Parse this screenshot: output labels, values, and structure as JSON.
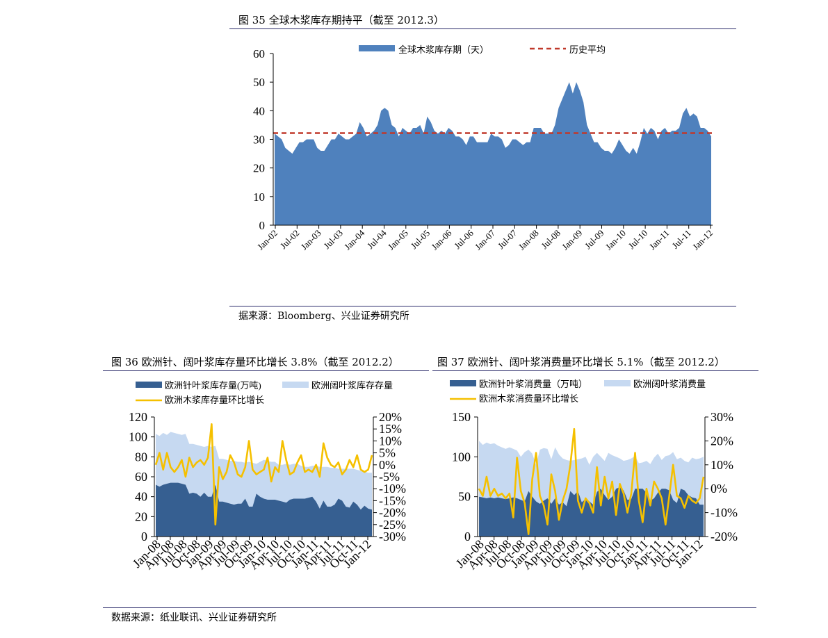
{
  "top": {
    "title": "图 35 全球木浆库存期持平（截至 2012.3）",
    "source": "据来源：Bloomberg、兴业证券研究所"
  },
  "bottom_left": {
    "title": "图 36 欧洲针、阔叶浆库存量环比增长 3.8%（截至 2012.2）"
  },
  "bottom_right": {
    "title": "图 37 欧洲针、阔叶浆消费量环比增长 5.1%（截至 2012.2）"
  },
  "bottom_source": "数据来源：纸业联讯、兴业证券研究所",
  "colors": {
    "area": "#4f81bd",
    "avg_line": "#c0392b",
    "dark_area": "#365f91",
    "light_area": "#c6d9f1",
    "growth_line": "#f5c000",
    "rule": "#2a2a6a"
  },
  "chart_data": [
    {
      "type": "area",
      "series": [
        {
          "name": "全球木浆库存期（天）",
          "values": [
            32,
            31,
            30,
            27,
            26,
            25,
            27,
            29,
            29,
            30,
            30,
            30,
            27,
            26,
            26,
            28,
            30,
            30,
            32,
            31,
            30,
            30,
            31,
            32,
            36,
            34,
            31,
            32,
            33,
            35,
            40,
            41,
            40,
            35,
            34,
            31,
            34,
            33,
            32,
            34,
            34,
            35,
            32,
            38,
            36,
            33,
            32,
            33,
            32,
            34,
            33,
            31,
            31,
            30,
            28,
            31,
            31,
            29,
            29,
            29,
            29,
            32,
            31,
            31,
            30,
            27,
            28,
            30,
            30,
            29,
            28,
            29,
            29,
            34,
            34,
            34,
            32,
            32,
            32,
            35,
            41,
            44,
            47,
            50,
            46,
            50,
            47,
            43,
            35,
            32,
            29,
            29,
            27,
            26,
            26,
            25,
            27,
            30,
            28,
            26,
            25,
            27,
            25,
            29,
            34,
            32,
            34,
            33,
            30,
            33,
            34,
            32,
            33,
            33,
            34,
            39,
            41,
            38,
            39,
            38,
            34,
            34,
            33,
            31
          ]
        },
        {
          "name": "历史平均",
          "values": [
            32.2
          ],
          "style": "dashed-constant"
        }
      ],
      "x_tick_labels": [
        "Jan-02",
        "Jul-02",
        "Jan-03",
        "Jul-03",
        "Jan-04",
        "Jul-04",
        "Jan-05",
        "Jul-05",
        "Jan-06",
        "Jul-06",
        "Jan-07",
        "Jul-07",
        "Jan-08",
        "Jul-08",
        "Jan-09",
        "Jul-09",
        "Jan-10",
        "Jul-10",
        "Jan-11",
        "Jul-11",
        "Jan-12"
      ],
      "y_ticks": [
        0,
        10,
        20,
        30,
        40,
        50,
        60
      ],
      "ylim": [
        0,
        60
      ],
      "legend": "top"
    },
    {
      "type": "area",
      "series": [
        {
          "name": "欧洲针叶浆库存量(万吨)",
          "axis": "left",
          "values": [
            52,
            50,
            52,
            53,
            54,
            54,
            54,
            53,
            52,
            43,
            44,
            43,
            40,
            44,
            40,
            40,
            52,
            35,
            35,
            34,
            33,
            32,
            33,
            33,
            38,
            30,
            30,
            43,
            40,
            38,
            37,
            37,
            37,
            36,
            35,
            34,
            37,
            38,
            38,
            38,
            38,
            39,
            40,
            35,
            28,
            36,
            30,
            30,
            32,
            38,
            36,
            30,
            29,
            35,
            32,
            27,
            31,
            28,
            27
          ]
        },
        {
          "name": "欧洲阔叶浆库存存量",
          "axis": "left",
          "values": [
            103,
            101,
            104,
            102,
            105,
            104,
            103,
            102,
            103,
            93,
            93,
            92,
            91,
            90,
            91,
            90,
            91,
            78,
            78,
            77,
            76,
            76,
            75,
            75,
            74,
            75,
            74,
            73,
            75,
            77,
            76,
            75,
            75,
            72,
            72,
            73,
            72,
            73,
            73,
            71,
            70,
            70,
            71,
            71,
            70,
            70,
            70,
            69,
            69,
            68,
            68,
            68,
            68,
            68,
            67,
            66,
            65,
            64,
            64
          ]
        },
        {
          "name": "欧洲木浆库存量环比增长",
          "axis": "right",
          "values": [
            0,
            5,
            -2,
            5,
            -1,
            -3,
            -1,
            2,
            -5,
            3,
            -1,
            1,
            2,
            0,
            3,
            17,
            -25,
            -1,
            -6,
            -3,
            4,
            1,
            -4,
            -5,
            -1,
            10,
            -2,
            -4,
            -3,
            -2,
            3,
            -7,
            -1,
            -3,
            10,
            2,
            -4,
            -3,
            1,
            4,
            -3,
            -2,
            -3,
            0,
            -5,
            9,
            3,
            0,
            -1,
            1,
            -4,
            -2,
            2,
            -1,
            4,
            -2,
            -3,
            -2,
            4
          ]
        }
      ],
      "x_tick_labels": [
        "Jan-08",
        "Apr-08",
        "Jul-08",
        "Oct-08",
        "Jan-09",
        "Apr-09",
        "Jul-09",
        "Oct-09",
        "Jan-10",
        "Apr-10",
        "Jul-10",
        "Oct-10",
        "Jan-11",
        "Apr-11",
        "Jul-11",
        "Oct-11",
        "Jan-12"
      ],
      "y_left_ticks": [
        0,
        20,
        40,
        60,
        80,
        100,
        120
      ],
      "y_right_ticks": [
        "-30%",
        "-25%",
        "-20%",
        "-15%",
        "-10%",
        "-5%",
        "0%",
        "5%",
        "10%",
        "15%",
        "20%"
      ],
      "ylim_left": [
        0,
        120
      ],
      "ylim_right": [
        -30,
        20
      ],
      "legend": "top"
    },
    {
      "type": "area",
      "series": [
        {
          "name": "欧洲针叶浆消费量（万吨）",
          "axis": "left",
          "values": [
            50,
            49,
            48,
            49,
            48,
            49,
            48,
            47,
            48,
            49,
            48,
            46,
            44,
            57,
            50,
            44,
            41,
            45,
            48,
            41,
            48,
            40,
            43,
            38,
            57,
            52,
            57,
            43,
            47,
            44,
            40,
            56,
            60,
            52,
            46,
            50,
            60,
            62,
            58,
            46,
            47,
            60,
            60,
            60,
            55,
            45,
            48,
            55,
            60,
            60,
            58,
            46,
            42,
            60,
            58,
            52,
            49,
            48,
            40,
            40
          ]
        },
        {
          "name": "欧洲阔叶浆消费量",
          "axis": "left",
          "values": [
            120,
            115,
            118,
            116,
            117,
            114,
            112,
            110,
            112,
            110,
            108,
            100,
            106,
            109,
            104,
            90,
            109,
            111,
            110,
            97,
            112,
            103,
            98,
            96,
            95,
            96,
            97,
            98,
            100,
            90,
            100,
            105,
            100,
            95,
            105,
            102,
            100,
            98,
            95,
            96,
            98,
            101,
            92,
            93,
            95,
            91,
            99,
            104,
            96,
            101,
            102,
            106,
            97,
            99,
            95,
            93,
            99,
            97,
            98,
            100
          ]
        },
        {
          "name": "欧洲木浆消费量环比增长",
          "axis": "right",
          "values": [
            0,
            -3,
            5,
            -3,
            0,
            -3,
            -2,
            -4,
            -2,
            -12,
            13,
            -1,
            -6,
            -19,
            4,
            15,
            -3,
            -7,
            -15,
            6,
            -1,
            -13,
            -5,
            0,
            10,
            25,
            -5,
            -10,
            -4,
            -6,
            -10,
            9,
            -7,
            5,
            -4,
            3,
            -11,
            2,
            -2,
            -10,
            -2,
            15,
            -5,
            -14,
            0,
            -7,
            3,
            0,
            -4,
            -15,
            -3,
            10,
            -3,
            -4,
            -8,
            -3,
            -5,
            -6,
            -4,
            5
          ]
        }
      ],
      "x_tick_labels": [
        "Jan-08",
        "Apr-08",
        "Jul-08",
        "Oct-08",
        "Jan-09",
        "Apr-09",
        "Jul-09",
        "Oct-09",
        "Jan-10",
        "Apr-10",
        "Jul-10",
        "Oct-10",
        "Jan-11",
        "Apr-11",
        "Jul-11",
        "Oct-11",
        "Jan-12"
      ],
      "y_left_ticks": [
        0,
        50,
        100,
        150
      ],
      "y_right_ticks": [
        "-20%",
        "-10%",
        "0%",
        "10%",
        "20%",
        "30%"
      ],
      "ylim_left": [
        0,
        150
      ],
      "ylim_right": [
        -20,
        30
      ],
      "legend": "top"
    }
  ]
}
